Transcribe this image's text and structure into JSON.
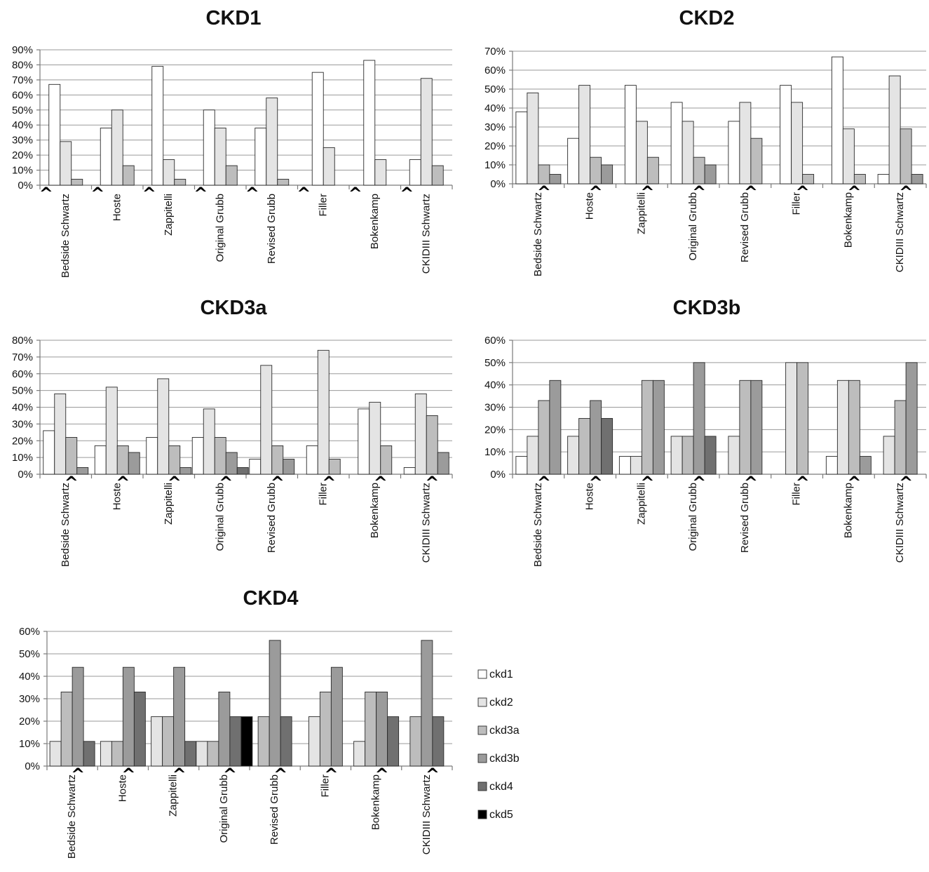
{
  "colors": {
    "ckd1": "#ffffff",
    "ckd2": "#e4e4e4",
    "ckd3a": "#bdbdbd",
    "ckd3b": "#9b9b9b",
    "ckd4": "#707070",
    "ckd5": "#000000"
  },
  "marker_glyph": "^",
  "legend": [
    {
      "key": "ckd1",
      "label": "ckd1"
    },
    {
      "key": "ckd2",
      "label": "ckd2"
    },
    {
      "key": "ckd3a",
      "label": "ckd3a"
    },
    {
      "key": "ckd3b",
      "label": "ckd3b"
    },
    {
      "key": "ckd4",
      "label": "ckd4"
    },
    {
      "key": "ckd5",
      "label": "ckd5"
    }
  ],
  "chart_data": [
    {
      "type": "bar",
      "title": "CKD1",
      "categories": [
        "Bedside Schwartz",
        "Hoste",
        "Zappitelli",
        "Original Grubb",
        "Revised Grubb",
        "Filler",
        "Bokenkamp",
        "CKIDIII Schwartz"
      ],
      "ylim": [
        0,
        90
      ],
      "ytick_step": 10,
      "grid": true,
      "marker_category_index": [
        0,
        1,
        2,
        3,
        4,
        5,
        6,
        7
      ],
      "series": [
        {
          "name": "ckd1",
          "values": [
            67,
            38,
            79,
            50,
            38,
            75,
            83,
            17
          ]
        },
        {
          "name": "ckd2",
          "values": [
            29,
            50,
            17,
            38,
            58,
            25,
            17,
            71
          ]
        },
        {
          "name": "ckd3a",
          "values": [
            4,
            13,
            4,
            13,
            4,
            0,
            0,
            13
          ]
        }
      ]
    },
    {
      "type": "bar",
      "title": "CKD2",
      "categories": [
        "Bedside Schwartz",
        "Hoste",
        "Zappitelli",
        "Original Grubb",
        "Revised Grubb",
        "Filler",
        "Bokenkamp",
        "CKIDIII Schwartz"
      ],
      "ylim": [
        0,
        70
      ],
      "ytick_step": 10,
      "grid": true,
      "series": [
        {
          "name": "ckd1",
          "values": [
            38,
            24,
            52,
            43,
            33,
            52,
            67,
            5
          ]
        },
        {
          "name": "ckd2",
          "values": [
            48,
            52,
            33,
            33,
            43,
            43,
            29,
            57
          ]
        },
        {
          "name": "ckd3a",
          "values": [
            10,
            14,
            14,
            14,
            24,
            5,
            5,
            29
          ]
        },
        {
          "name": "ckd3b",
          "values": [
            5,
            10,
            0,
            10,
            0,
            0,
            0,
            5
          ]
        }
      ]
    },
    {
      "type": "bar",
      "title": "CKD3a",
      "categories": [
        "Bedside Schwartz",
        "Hoste",
        "Zappitelli",
        "Original Grubb",
        "Revised Grubb",
        "Filler",
        "Bokenkamp",
        "CKIDIII Schwartz"
      ],
      "ylim": [
        0,
        80
      ],
      "ytick_step": 10,
      "grid": true,
      "series": [
        {
          "name": "ckd1",
          "values": [
            26,
            17,
            22,
            22,
            9,
            17,
            39,
            4
          ]
        },
        {
          "name": "ckd2",
          "values": [
            48,
            52,
            57,
            39,
            65,
            74,
            43,
            48
          ]
        },
        {
          "name": "ckd3a",
          "values": [
            22,
            17,
            17,
            22,
            17,
            9,
            17,
            35
          ]
        },
        {
          "name": "ckd3b",
          "values": [
            4,
            13,
            4,
            13,
            9,
            0,
            0,
            13
          ]
        },
        {
          "name": "ckd4",
          "values": [
            0,
            0,
            0,
            4,
            0,
            0,
            0,
            0
          ]
        }
      ]
    },
    {
      "type": "bar",
      "title": "CKD3b",
      "categories": [
        "Bedside Schwartz",
        "Hoste",
        "Zappitelli",
        "Original Grubb",
        "Revised Grubb",
        "Filler",
        "Bokenkamp",
        "CKIDIII Schwartz"
      ],
      "ylim": [
        0,
        60
      ],
      "ytick_step": 10,
      "grid": true,
      "series": [
        {
          "name": "ckd1",
          "values": [
            8,
            0,
            8,
            0,
            0,
            0,
            8,
            0
          ]
        },
        {
          "name": "ckd2",
          "values": [
            17,
            17,
            8,
            17,
            17,
            50,
            42,
            17
          ]
        },
        {
          "name": "ckd3a",
          "values": [
            33,
            25,
            42,
            17,
            42,
            50,
            42,
            33
          ]
        },
        {
          "name": "ckd3b",
          "values": [
            42,
            33,
            42,
            50,
            42,
            0,
            8,
            50
          ]
        },
        {
          "name": "ckd4",
          "values": [
            0,
            25,
            0,
            17,
            0,
            0,
            0,
            0
          ]
        }
      ]
    },
    {
      "type": "bar",
      "title": "CKD4",
      "categories": [
        "Bedside Schwartz",
        "Hoste",
        "Zappitelli",
        "Original Grubb",
        "Revised Grubb",
        "Filler",
        "Bokenkamp",
        "CKIDIII Schwartz"
      ],
      "ylim": [
        0,
        60
      ],
      "ytick_step": 10,
      "grid": true,
      "series": [
        {
          "name": "ckd2",
          "values": [
            11,
            11,
            22,
            11,
            0,
            22,
            11,
            0
          ]
        },
        {
          "name": "ckd3a",
          "values": [
            33,
            11,
            22,
            11,
            22,
            33,
            33,
            22
          ]
        },
        {
          "name": "ckd3b",
          "values": [
            44,
            44,
            44,
            33,
            56,
            44,
            33,
            56
          ]
        },
        {
          "name": "ckd4",
          "values": [
            11,
            33,
            11,
            22,
            22,
            0,
            22,
            22
          ]
        },
        {
          "name": "ckd5",
          "values": [
            0,
            0,
            0,
            22,
            0,
            0,
            0,
            0
          ]
        }
      ]
    }
  ]
}
